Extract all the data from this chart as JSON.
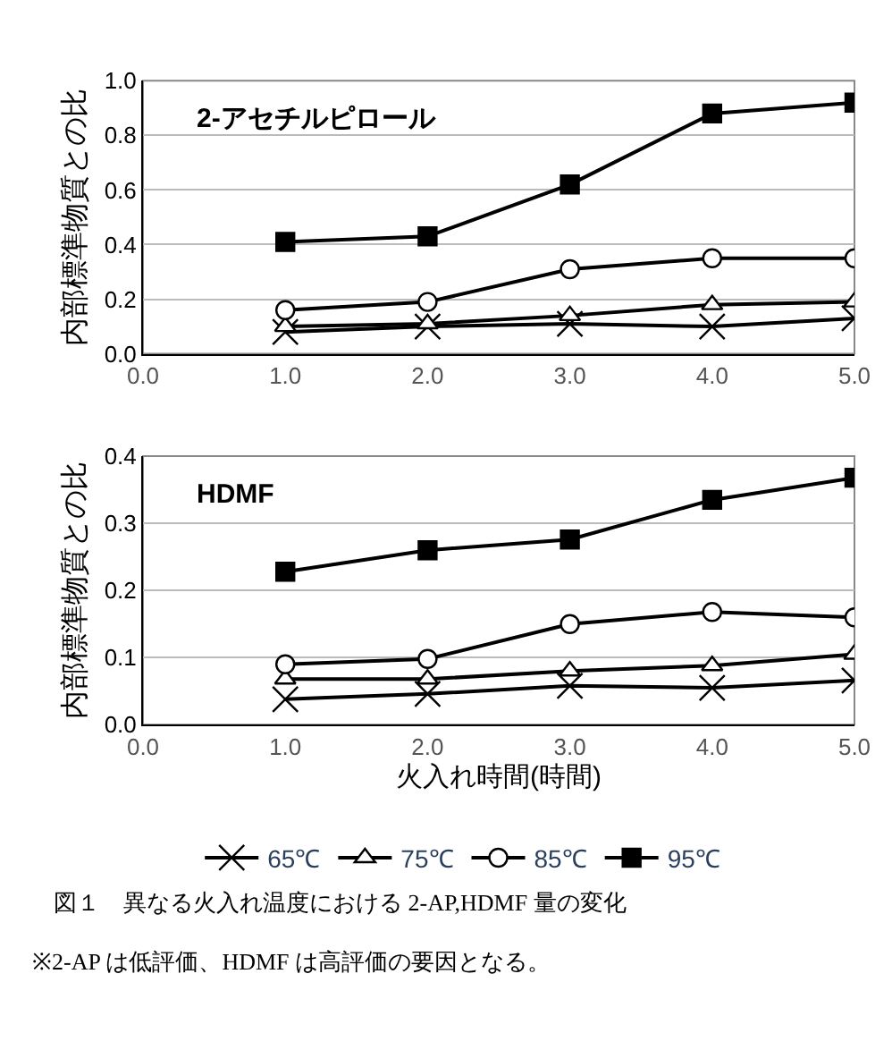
{
  "chart_data": [
    {
      "type": "line",
      "title": "2-アセチルピロール",
      "ylabel": "内部標準物質との比",
      "x": [
        1.0,
        2.0,
        3.0,
        4.0,
        5.0
      ],
      "xlim": [
        0,
        5
      ],
      "xticks": [
        {
          "value": 0,
          "label": "0.0"
        },
        {
          "value": 1,
          "label": "1.0"
        },
        {
          "value": 2,
          "label": "2.0"
        },
        {
          "value": 3,
          "label": "3.0"
        },
        {
          "value": 4,
          "label": "4.0"
        },
        {
          "value": 5,
          "label": "5.0"
        }
      ],
      "ylim": [
        0,
        1
      ],
      "yticks": [
        {
          "value": 0,
          "label": "0.0"
        },
        {
          "value": 0.2,
          "label": "0.2"
        },
        {
          "value": 0.4,
          "label": "0.4"
        },
        {
          "value": 0.6,
          "label": "0.6"
        },
        {
          "value": 0.8,
          "label": "0.8"
        },
        {
          "value": 1,
          "label": "1.0"
        }
      ],
      "grid": "y",
      "legend": false,
      "line_style": "solid",
      "series": [
        {
          "color": "#000000",
          "marker": "cross",
          "values": [
            0.08,
            0.1,
            0.11,
            0.1,
            0.13
          ]
        },
        {
          "color": "#000000",
          "marker": "triangle",
          "values": [
            0.1,
            0.11,
            0.14,
            0.18,
            0.19
          ]
        },
        {
          "color": "#000000",
          "marker": "circle",
          "values": [
            0.16,
            0.19,
            0.31,
            0.35,
            0.35
          ]
        },
        {
          "color": "#000000",
          "marker": "square",
          "values": [
            0.41,
            0.43,
            0.62,
            0.88,
            0.92
          ]
        }
      ]
    },
    {
      "type": "line",
      "title": "HDMF",
      "ylabel": "内部標準物質との比",
      "xlabel": "火入れ時間(時間)",
      "x": [
        1.0,
        2.0,
        3.0,
        4.0,
        5.0
      ],
      "xlim": [
        0,
        5
      ],
      "xticks": [
        {
          "value": 0,
          "label": "0.0"
        },
        {
          "value": 1,
          "label": "1.0"
        },
        {
          "value": 2,
          "label": "2.0"
        },
        {
          "value": 3,
          "label": "3.0"
        },
        {
          "value": 4,
          "label": "4.0"
        },
        {
          "value": 5,
          "label": "5.0"
        }
      ],
      "ylim": [
        0,
        0.4
      ],
      "yticks": [
        {
          "value": 0,
          "label": "0.0"
        },
        {
          "value": 0.1,
          "label": "0.1"
        },
        {
          "value": 0.2,
          "label": "0.2"
        },
        {
          "value": 0.3,
          "label": "0.3"
        },
        {
          "value": 0.4,
          "label": "0.4"
        }
      ],
      "grid": "y",
      "legend": "bottom",
      "line_style": "solid",
      "annotations": [
        "図１　異なる火入れ温度における 2-AP,HDMF 量の変化",
        "※2-AP は低評価、HDMF は高評価の要因となる。"
      ],
      "series": [
        {
          "name": "65℃",
          "color": "#000000",
          "marker": "cross",
          "values": [
            0.038,
            0.046,
            0.058,
            0.055,
            0.066
          ]
        },
        {
          "name": "75℃",
          "color": "#000000",
          "marker": "triangle",
          "values": [
            0.068,
            0.068,
            0.08,
            0.088,
            0.105
          ]
        },
        {
          "name": "85℃",
          "color": "#000000",
          "marker": "circle",
          "values": [
            0.09,
            0.098,
            0.15,
            0.168,
            0.16
          ]
        },
        {
          "name": "95℃",
          "color": "#000000",
          "marker": "square",
          "values": [
            0.228,
            0.26,
            0.276,
            0.335,
            0.368
          ]
        }
      ]
    }
  ]
}
